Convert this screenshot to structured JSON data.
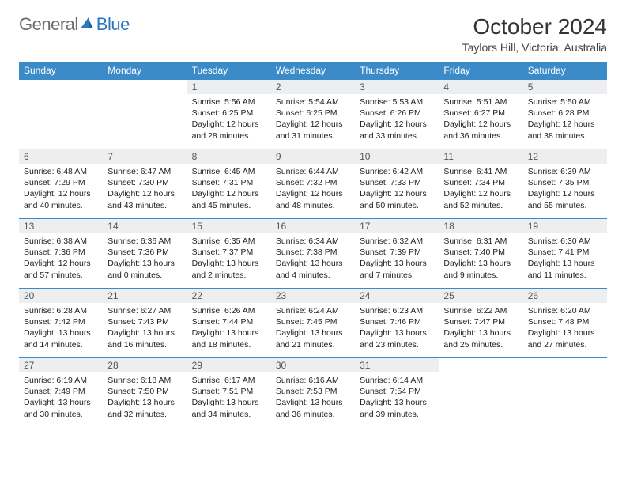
{
  "brand": {
    "part1": "General",
    "part2": "Blue"
  },
  "title": "October 2024",
  "location": "Taylors Hill, Victoria, Australia",
  "colors": {
    "header_bg": "#3b8bc9",
    "header_fg": "#ffffff",
    "daynum_bg": "#eceef0",
    "rule": "#3b8bc9",
    "text": "#222222",
    "brand_grey": "#6b6b6b",
    "brand_blue": "#2a78bf"
  },
  "weekdays": [
    "Sunday",
    "Monday",
    "Tuesday",
    "Wednesday",
    "Thursday",
    "Friday",
    "Saturday"
  ],
  "first_weekday_index": 2,
  "days": [
    {
      "n": 1,
      "sunrise": "5:56 AM",
      "sunset": "6:25 PM",
      "daylight": "12 hours and 28 minutes."
    },
    {
      "n": 2,
      "sunrise": "5:54 AM",
      "sunset": "6:25 PM",
      "daylight": "12 hours and 31 minutes."
    },
    {
      "n": 3,
      "sunrise": "5:53 AM",
      "sunset": "6:26 PM",
      "daylight": "12 hours and 33 minutes."
    },
    {
      "n": 4,
      "sunrise": "5:51 AM",
      "sunset": "6:27 PM",
      "daylight": "12 hours and 36 minutes."
    },
    {
      "n": 5,
      "sunrise": "5:50 AM",
      "sunset": "6:28 PM",
      "daylight": "12 hours and 38 minutes."
    },
    {
      "n": 6,
      "sunrise": "6:48 AM",
      "sunset": "7:29 PM",
      "daylight": "12 hours and 40 minutes."
    },
    {
      "n": 7,
      "sunrise": "6:47 AM",
      "sunset": "7:30 PM",
      "daylight": "12 hours and 43 minutes."
    },
    {
      "n": 8,
      "sunrise": "6:45 AM",
      "sunset": "7:31 PM",
      "daylight": "12 hours and 45 minutes."
    },
    {
      "n": 9,
      "sunrise": "6:44 AM",
      "sunset": "7:32 PM",
      "daylight": "12 hours and 48 minutes."
    },
    {
      "n": 10,
      "sunrise": "6:42 AM",
      "sunset": "7:33 PM",
      "daylight": "12 hours and 50 minutes."
    },
    {
      "n": 11,
      "sunrise": "6:41 AM",
      "sunset": "7:34 PM",
      "daylight": "12 hours and 52 minutes."
    },
    {
      "n": 12,
      "sunrise": "6:39 AM",
      "sunset": "7:35 PM",
      "daylight": "12 hours and 55 minutes."
    },
    {
      "n": 13,
      "sunrise": "6:38 AM",
      "sunset": "7:36 PM",
      "daylight": "12 hours and 57 minutes."
    },
    {
      "n": 14,
      "sunrise": "6:36 AM",
      "sunset": "7:36 PM",
      "daylight": "13 hours and 0 minutes."
    },
    {
      "n": 15,
      "sunrise": "6:35 AM",
      "sunset": "7:37 PM",
      "daylight": "13 hours and 2 minutes."
    },
    {
      "n": 16,
      "sunrise": "6:34 AM",
      "sunset": "7:38 PM",
      "daylight": "13 hours and 4 minutes."
    },
    {
      "n": 17,
      "sunrise": "6:32 AM",
      "sunset": "7:39 PM",
      "daylight": "13 hours and 7 minutes."
    },
    {
      "n": 18,
      "sunrise": "6:31 AM",
      "sunset": "7:40 PM",
      "daylight": "13 hours and 9 minutes."
    },
    {
      "n": 19,
      "sunrise": "6:30 AM",
      "sunset": "7:41 PM",
      "daylight": "13 hours and 11 minutes."
    },
    {
      "n": 20,
      "sunrise": "6:28 AM",
      "sunset": "7:42 PM",
      "daylight": "13 hours and 14 minutes."
    },
    {
      "n": 21,
      "sunrise": "6:27 AM",
      "sunset": "7:43 PM",
      "daylight": "13 hours and 16 minutes."
    },
    {
      "n": 22,
      "sunrise": "6:26 AM",
      "sunset": "7:44 PM",
      "daylight": "13 hours and 18 minutes."
    },
    {
      "n": 23,
      "sunrise": "6:24 AM",
      "sunset": "7:45 PM",
      "daylight": "13 hours and 21 minutes."
    },
    {
      "n": 24,
      "sunrise": "6:23 AM",
      "sunset": "7:46 PM",
      "daylight": "13 hours and 23 minutes."
    },
    {
      "n": 25,
      "sunrise": "6:22 AM",
      "sunset": "7:47 PM",
      "daylight": "13 hours and 25 minutes."
    },
    {
      "n": 26,
      "sunrise": "6:20 AM",
      "sunset": "7:48 PM",
      "daylight": "13 hours and 27 minutes."
    },
    {
      "n": 27,
      "sunrise": "6:19 AM",
      "sunset": "7:49 PM",
      "daylight": "13 hours and 30 minutes."
    },
    {
      "n": 28,
      "sunrise": "6:18 AM",
      "sunset": "7:50 PM",
      "daylight": "13 hours and 32 minutes."
    },
    {
      "n": 29,
      "sunrise": "6:17 AM",
      "sunset": "7:51 PM",
      "daylight": "13 hours and 34 minutes."
    },
    {
      "n": 30,
      "sunrise": "6:16 AM",
      "sunset": "7:53 PM",
      "daylight": "13 hours and 36 minutes."
    },
    {
      "n": 31,
      "sunrise": "6:14 AM",
      "sunset": "7:54 PM",
      "daylight": "13 hours and 39 minutes."
    }
  ],
  "labels": {
    "sunrise": "Sunrise:",
    "sunset": "Sunset:",
    "daylight": "Daylight:"
  }
}
